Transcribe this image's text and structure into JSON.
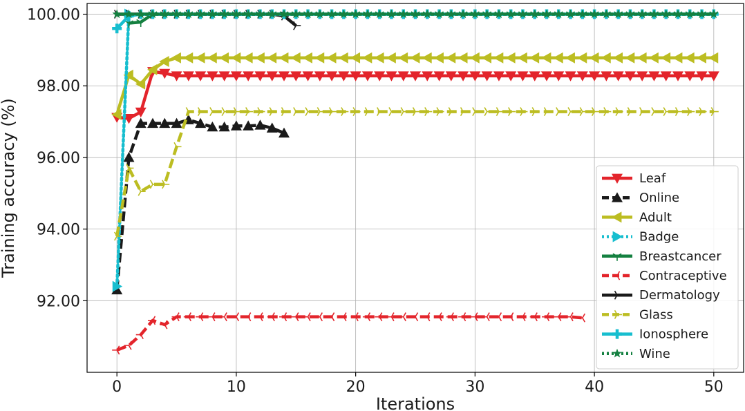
{
  "chart_data": {
    "type": "line",
    "title": "",
    "xlabel": "Iterations",
    "ylabel": "Training accuracy (%)",
    "xlim": [
      -2.5,
      52.5
    ],
    "ylim": [
      90.0,
      100.3
    ],
    "xticks": [
      0,
      10,
      20,
      30,
      40,
      50
    ],
    "xtick_labels": [
      "0",
      "10",
      "20",
      "30",
      "40",
      "50"
    ],
    "yticks": [
      92,
      94,
      96,
      98,
      100
    ],
    "ytick_labels": [
      "92.00",
      "94.00",
      "96.00",
      "98.00",
      "100.00"
    ],
    "grid": true,
    "legend_position": "lower-right",
    "series": [
      {
        "name": "Leaf",
        "color": "#e3242b",
        "linestyle": "solid",
        "marker": "triangle-down",
        "x": [
          0,
          1,
          2,
          3,
          4,
          5,
          6,
          7,
          8,
          9,
          10,
          11,
          12,
          13,
          14,
          15,
          16,
          17,
          18,
          19,
          20,
          21,
          22,
          23,
          24,
          25,
          26,
          27,
          28,
          29,
          30,
          31,
          32,
          33,
          34,
          35,
          36,
          37,
          38,
          39,
          40,
          41,
          42,
          43,
          44,
          45,
          46,
          47,
          48,
          49,
          50
        ],
        "y": [
          97.12,
          97.09,
          97.27,
          98.4,
          98.35,
          98.28,
          98.28,
          98.28,
          98.28,
          98.28,
          98.28,
          98.28,
          98.28,
          98.28,
          98.28,
          98.28,
          98.28,
          98.28,
          98.28,
          98.28,
          98.28,
          98.28,
          98.28,
          98.28,
          98.28,
          98.28,
          98.28,
          98.28,
          98.28,
          98.28,
          98.28,
          98.28,
          98.28,
          98.28,
          98.28,
          98.28,
          98.28,
          98.28,
          98.28,
          98.28,
          98.28,
          98.28,
          98.28,
          98.28,
          98.28,
          98.28,
          98.28,
          98.28,
          98.28,
          98.28,
          98.28
        ]
      },
      {
        "name": "Online",
        "color": "#1a1a1a",
        "linestyle": "dashed",
        "marker": "triangle-up",
        "x": [
          0,
          1,
          2,
          3,
          4,
          5,
          6,
          7,
          8,
          9,
          10,
          11,
          12,
          13,
          14
        ],
        "y": [
          92.3,
          96.0,
          96.95,
          96.95,
          96.95,
          96.95,
          97.05,
          96.95,
          96.85,
          96.85,
          96.88,
          96.88,
          96.9,
          96.82,
          96.68
        ]
      },
      {
        "name": "Adult",
        "color": "#bcbd22",
        "linestyle": "solid",
        "marker": "triangle-left",
        "x": [
          0,
          1,
          2,
          3,
          4,
          5,
          6,
          7,
          8,
          9,
          10,
          11,
          12,
          13,
          14,
          15,
          16,
          17,
          18,
          19,
          20,
          21,
          22,
          23,
          24,
          25,
          26,
          27,
          28,
          29,
          30,
          31,
          32,
          33,
          34,
          35,
          36,
          37,
          38,
          39,
          40,
          41,
          42,
          43,
          44,
          45,
          46,
          47,
          48,
          49,
          50
        ],
        "y": [
          97.2,
          98.3,
          98.05,
          98.45,
          98.68,
          98.78,
          98.78,
          98.78,
          98.78,
          98.78,
          98.78,
          98.78,
          98.78,
          98.78,
          98.78,
          98.78,
          98.78,
          98.78,
          98.78,
          98.78,
          98.78,
          98.78,
          98.78,
          98.78,
          98.78,
          98.78,
          98.78,
          98.78,
          98.78,
          98.78,
          98.78,
          98.78,
          98.78,
          98.78,
          98.78,
          98.78,
          98.78,
          98.78,
          98.78,
          98.78,
          98.78,
          98.78,
          98.78,
          98.78,
          98.78,
          98.78,
          98.78,
          98.78,
          98.78,
          98.78,
          98.78
        ]
      },
      {
        "name": "Badge",
        "color": "#17becf",
        "linestyle": "dotted",
        "marker": "triangle-right",
        "x": [
          0,
          1
        ],
        "y": [
          92.4,
          100.0
        ]
      },
      {
        "name": "Breastcancer",
        "color": "#148040",
        "linestyle": "solid",
        "marker": "tri-down",
        "x": [
          1,
          2,
          3,
          4,
          5,
          6,
          7,
          8,
          9,
          10,
          11,
          12,
          13,
          14,
          15,
          16,
          17,
          18,
          19,
          20,
          21,
          22,
          23,
          24,
          25,
          26,
          27,
          28,
          29,
          30,
          31,
          32,
          33,
          34,
          35,
          36,
          37,
          38,
          39,
          40,
          41,
          42,
          43,
          44,
          45,
          46,
          47,
          48,
          49,
          50
        ],
        "y": [
          99.75,
          99.78,
          100,
          100,
          100,
          100,
          100,
          100,
          100,
          100,
          100,
          100,
          100,
          100,
          100,
          100,
          100,
          100,
          100,
          100,
          100,
          100,
          100,
          100,
          100,
          100,
          100,
          100,
          100,
          100,
          100,
          100,
          100,
          100,
          100,
          100,
          100,
          100,
          100,
          100,
          100,
          100,
          100,
          100,
          100,
          100,
          100,
          100,
          100,
          100
        ]
      },
      {
        "name": "Contraceptive",
        "color": "#e3242b",
        "linestyle": "dashed",
        "marker": "tri-left",
        "x": [
          0,
          1,
          2,
          3,
          4,
          5,
          6,
          7,
          8,
          9,
          10,
          11,
          12,
          13,
          14,
          15,
          16,
          17,
          18,
          19,
          20,
          21,
          22,
          23,
          24,
          25,
          26,
          27,
          28,
          29,
          30,
          31,
          32,
          33,
          34,
          35,
          36,
          37,
          38,
          39
        ],
        "y": [
          90.62,
          90.75,
          91.05,
          91.45,
          91.33,
          91.55,
          91.55,
          91.55,
          91.55,
          91.55,
          91.55,
          91.55,
          91.55,
          91.55,
          91.55,
          91.55,
          91.55,
          91.55,
          91.55,
          91.55,
          91.55,
          91.55,
          91.55,
          91.55,
          91.55,
          91.55,
          91.55,
          91.55,
          91.55,
          91.55,
          91.55,
          91.55,
          91.55,
          91.55,
          91.55,
          91.55,
          91.55,
          91.55,
          91.55,
          91.52
        ]
      },
      {
        "name": "Dermatology",
        "color": "#1a1a1a",
        "linestyle": "solid",
        "marker": "tri-right",
        "x": [
          0,
          1,
          2,
          3,
          4,
          5,
          6,
          7,
          8,
          9,
          10,
          11,
          12,
          13,
          14,
          15
        ],
        "y": [
          100,
          100,
          100,
          100,
          100,
          100,
          100,
          100,
          100,
          100,
          100,
          100,
          100,
          100,
          99.95,
          99.68
        ]
      },
      {
        "name": "Glass",
        "color": "#bcbd22",
        "linestyle": "dashed",
        "marker": "tri-right",
        "x": [
          0,
          1,
          2,
          3,
          4,
          5,
          6,
          7,
          8,
          9,
          10,
          11,
          12,
          13,
          14,
          15,
          16,
          17,
          18,
          19,
          20,
          21,
          22,
          23,
          24,
          25,
          26,
          27,
          28,
          29,
          30,
          31,
          32,
          33,
          34,
          35,
          36,
          37,
          38,
          39,
          40,
          41,
          42,
          43,
          44,
          45,
          46,
          47,
          48,
          49,
          50
        ],
        "y": [
          93.8,
          95.7,
          95.05,
          95.25,
          95.25,
          96.3,
          97.28,
          97.28,
          97.28,
          97.28,
          97.28,
          97.28,
          97.28,
          97.28,
          97.28,
          97.28,
          97.28,
          97.28,
          97.28,
          97.28,
          97.28,
          97.28,
          97.28,
          97.28,
          97.28,
          97.28,
          97.28,
          97.28,
          97.28,
          97.28,
          97.28,
          97.28,
          97.28,
          97.28,
          97.28,
          97.28,
          97.28,
          97.28,
          97.28,
          97.28,
          97.28,
          97.28,
          97.28,
          97.28,
          97.28,
          97.28,
          97.28,
          97.28,
          97.28,
          97.28,
          97.28
        ]
      },
      {
        "name": "Ionosphere",
        "color": "#17becf",
        "linestyle": "solid",
        "marker": "plus",
        "x": [
          0,
          1,
          2,
          3,
          4,
          5,
          6,
          7,
          8,
          9,
          10,
          11,
          12,
          13,
          14,
          15,
          16,
          17,
          18,
          19,
          20,
          21,
          22,
          23,
          24,
          25,
          26,
          27,
          28,
          29,
          30,
          31,
          32,
          33,
          34,
          35,
          36,
          37,
          38,
          39,
          40,
          41,
          42,
          43,
          44,
          45,
          46,
          47,
          48,
          49,
          50
        ],
        "y": [
          99.6,
          99.95,
          100,
          100,
          100,
          100,
          100,
          100,
          100,
          100,
          100,
          100,
          100,
          100,
          100,
          100,
          100,
          100,
          100,
          100,
          100,
          100,
          100,
          100,
          100,
          100,
          100,
          100,
          100,
          100,
          100,
          100,
          100,
          100,
          100,
          100,
          100,
          100,
          100,
          100,
          100,
          100,
          100,
          100,
          100,
          100,
          100,
          100,
          100,
          100,
          100
        ]
      },
      {
        "name": "Wine",
        "color": "#148040",
        "linestyle": "dotted",
        "marker": "star",
        "x": [
          0,
          1,
          2,
          3,
          4,
          5,
          6,
          7,
          8,
          9,
          10,
          11,
          12,
          13,
          14,
          15,
          16,
          17,
          18,
          19,
          20,
          21,
          22,
          23,
          24,
          25,
          26,
          27,
          28,
          29,
          30,
          31,
          32,
          33,
          34,
          35,
          36,
          37,
          38,
          39,
          40,
          41,
          42,
          43,
          44,
          45,
          46,
          47,
          48,
          49,
          50
        ],
        "y": [
          100,
          100,
          100,
          100,
          100,
          100,
          100,
          100,
          100,
          100,
          100,
          100,
          100,
          100,
          100,
          100,
          100,
          100,
          100,
          100,
          100,
          100,
          100,
          100,
          100,
          100,
          100,
          100,
          100,
          100,
          100,
          100,
          100,
          100,
          100,
          100,
          100,
          100,
          100,
          100,
          100,
          100,
          100,
          100,
          100,
          100,
          100,
          100,
          100,
          100,
          100
        ]
      }
    ]
  }
}
